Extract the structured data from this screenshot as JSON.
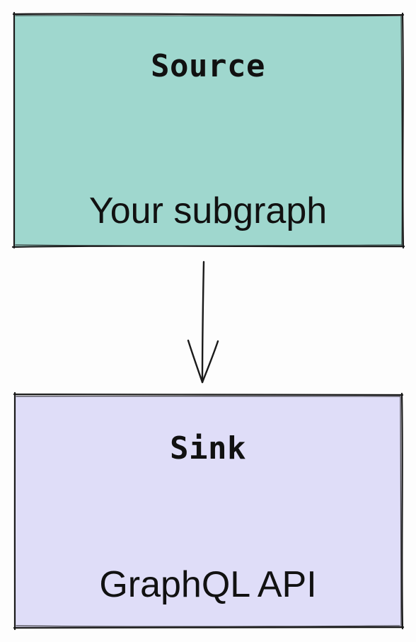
{
  "colors": {
    "source_fill": "#9fd7ce",
    "sink_fill": "#dfddf8",
    "stroke": "#1a1a1a",
    "background": "#fdfdfd"
  },
  "source": {
    "title": "Source",
    "subtitle": "Your subgraph"
  },
  "sink": {
    "title": "Sink",
    "subtitle": "GraphQL API"
  }
}
